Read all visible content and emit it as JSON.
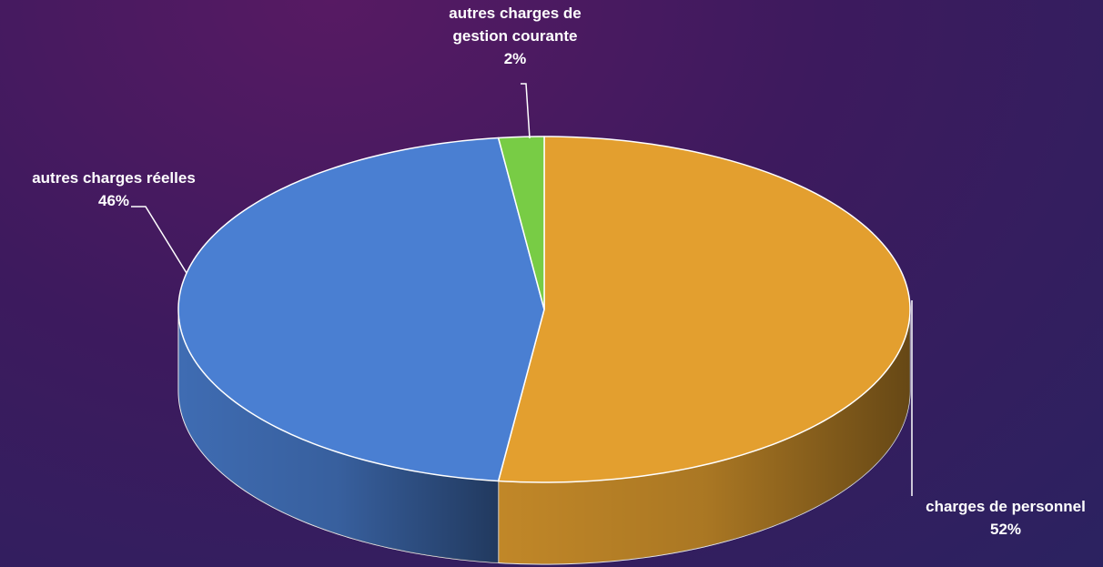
{
  "chart_data": {
    "type": "pie",
    "categories": [
      "charges de personnel",
      "autres charges réelles",
      "autres charges de gestion courante"
    ],
    "values": [
      52,
      46,
      2
    ],
    "value_labels": [
      "52%",
      "46%",
      "2%"
    ],
    "colors": [
      "#e39f2f",
      "#4a7fd2",
      "#78cc45"
    ],
    "three_d": true
  }
}
